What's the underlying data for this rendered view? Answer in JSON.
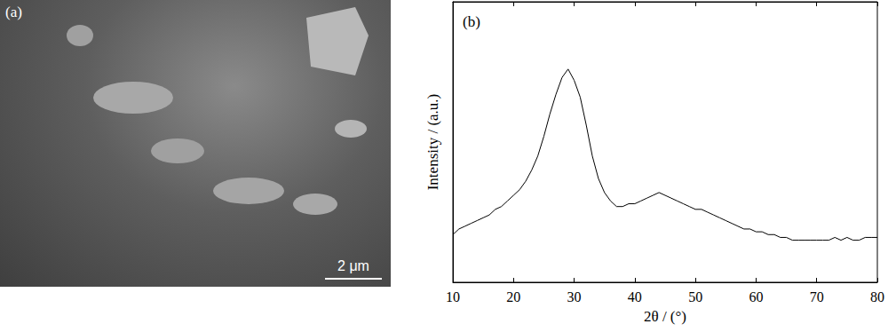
{
  "chart_data": {
    "type": "line",
    "annotations": [
      "(b)"
    ],
    "x_label": "2θ / (°)",
    "y_label": "Intensity / (a.u.)",
    "x": [
      10,
      11,
      12,
      13,
      14,
      15,
      16,
      17,
      18,
      19,
      20,
      21,
      22,
      23,
      24,
      25,
      26,
      27,
      28,
      29,
      30,
      31,
      32,
      33,
      34,
      35,
      36,
      37,
      38,
      39,
      40,
      41,
      42,
      43,
      44,
      45,
      46,
      47,
      48,
      49,
      50,
      51,
      52,
      53,
      54,
      55,
      56,
      57,
      58,
      59,
      60,
      61,
      62,
      63,
      64,
      65,
      66,
      67,
      68,
      69,
      70,
      71,
      72,
      73,
      74,
      75,
      76,
      77,
      78,
      79,
      80
    ],
    "values": [
      17,
      19,
      20,
      21,
      22,
      23,
      24,
      26,
      27,
      29,
      31,
      33,
      36,
      40,
      45,
      52,
      60,
      67,
      73,
      76,
      72,
      66,
      56,
      45,
      37,
      32,
      29,
      27,
      27,
      28,
      28,
      29,
      30,
      31,
      32,
      31,
      30,
      29,
      28,
      27,
      26,
      26,
      25,
      24,
      23,
      22,
      21,
      20,
      19,
      19,
      18,
      18,
      17,
      17,
      16,
      16,
      15,
      15,
      15,
      15,
      15,
      15,
      15,
      16,
      15,
      16,
      15,
      15,
      16,
      16,
      16
    ],
    "color": "#000000",
    "xlim": [
      10,
      80
    ],
    "xticks": [
      10,
      20,
      30,
      40,
      50,
      60,
      70,
      80
    ],
    "ylim": [
      0,
      100
    ],
    "yticks": [],
    "tick_labels": "x",
    "grid": false
  },
  "image_panel": {
    "label": "(a)",
    "scale_bar": "2 μm"
  }
}
